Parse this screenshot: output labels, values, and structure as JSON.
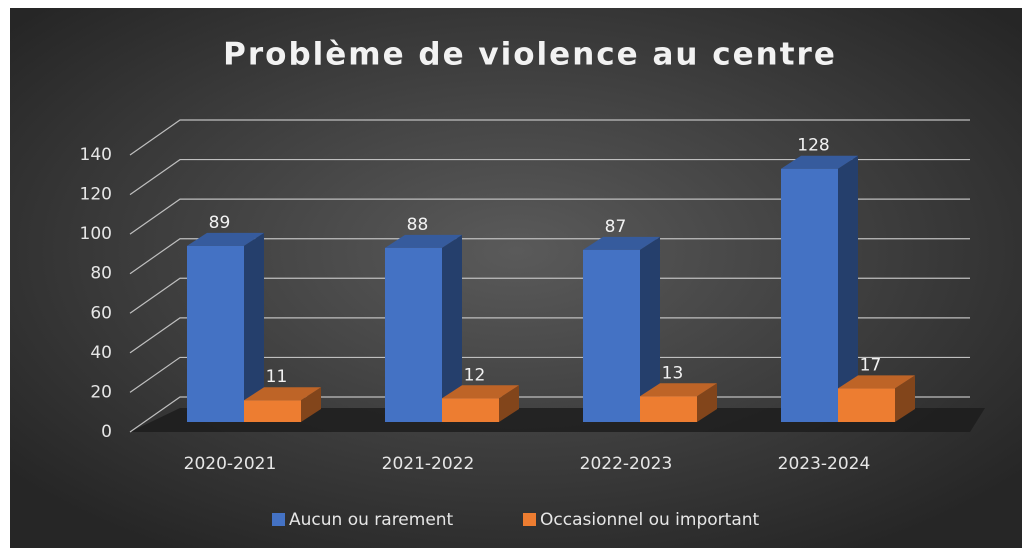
{
  "chart_data": {
    "type": "bar",
    "title": "Problème de violence au centre",
    "categories": [
      "2020-2021",
      "2021-2022",
      "2022-2023",
      "2023-2024"
    ],
    "series": [
      {
        "name": "Aucun ou rarement",
        "color": "#4472c4",
        "values": [
          89,
          88,
          87,
          128
        ]
      },
      {
        "name": "Occasionnel ou important",
        "color": "#ed7d31",
        "values": [
          11,
          12,
          13,
          17
        ]
      }
    ],
    "ylim": [
      0,
      140
    ],
    "yticks": [
      0,
      20,
      40,
      60,
      80,
      100,
      120,
      140
    ],
    "grid": true,
    "legend": "bottom"
  }
}
